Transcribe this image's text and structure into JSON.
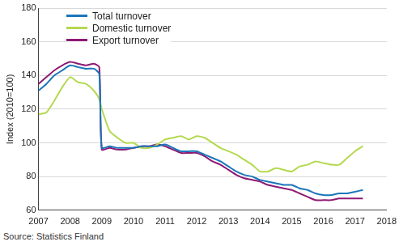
{
  "chart_data": {
    "type": "line",
    "y_label": "Index (2010=100)",
    "source": "Source: Statistics Finland",
    "x": [
      2007,
      2007.25,
      2007.5,
      2007.75,
      2008,
      2008.25,
      2008.5,
      2008.75,
      2008.92,
      2009,
      2009.25,
      2009.5,
      2009.75,
      2010,
      2010.25,
      2010.5,
      2010.75,
      2011,
      2011.25,
      2011.5,
      2011.75,
      2012,
      2012.25,
      2012.5,
      2012.75,
      2013,
      2013.25,
      2013.5,
      2013.75,
      2014,
      2014.25,
      2014.5,
      2014.75,
      2015,
      2015.25,
      2015.5,
      2015.75,
      2016,
      2016.25,
      2016.5,
      2016.75,
      2017,
      2017.25
    ],
    "series": [
      {
        "name": "Total turnover",
        "color": "#1b75bb",
        "values": [
          131,
          135,
          140,
          143,
          146,
          145,
          144,
          144,
          141,
          97,
          98,
          97,
          97,
          97,
          98,
          98,
          98,
          99,
          97,
          95,
          95,
          95,
          93,
          91,
          89,
          86,
          83,
          81,
          80,
          78,
          77,
          76,
          75,
          75,
          73,
          72,
          70,
          69,
          69,
          70,
          70,
          71,
          72
        ]
      },
      {
        "name": "Domestic turnover",
        "color": "#b4d94f",
        "values": [
          117,
          118,
          125,
          133,
          139,
          136,
          135,
          131,
          126,
          120,
          107,
          103,
          100,
          100,
          97,
          97,
          99,
          102,
          103,
          104,
          102,
          104,
          103,
          100,
          97,
          95,
          93,
          90,
          87,
          83,
          83,
          85,
          84,
          83,
          86,
          87,
          89,
          88,
          87,
          87,
          91,
          95,
          98
        ]
      },
      {
        "name": "Export turnover",
        "color": "#8e1a73",
        "values": [
          135,
          139,
          143,
          146,
          148,
          147,
          146,
          147,
          145,
          96,
          97,
          96,
          96,
          97,
          98,
          98,
          99,
          98,
          96,
          94,
          94,
          94,
          92,
          89,
          87,
          84,
          81,
          79,
          78,
          77,
          75,
          74,
          73,
          72,
          70,
          68,
          66,
          66,
          66,
          67,
          67,
          67,
          67
        ]
      }
    ],
    "xlim": [
      2007,
      2018
    ],
    "xticks": [
      2007,
      2008,
      2009,
      2010,
      2011,
      2012,
      2013,
      2014,
      2015,
      2016,
      2017,
      2018
    ],
    "ylim": [
      60,
      180
    ],
    "yticks": [
      60,
      80,
      100,
      120,
      140,
      160,
      180
    ],
    "grid": true,
    "legend": "upper left"
  }
}
